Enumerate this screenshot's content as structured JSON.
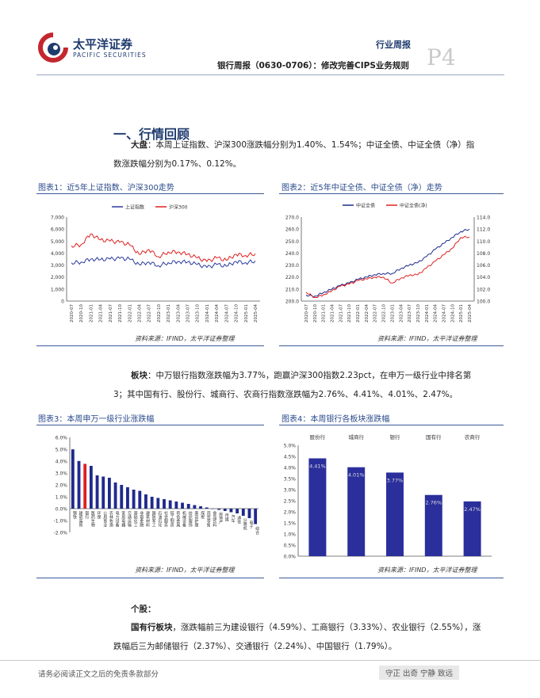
{
  "header": {
    "brand_cn": "太平洋证券",
    "brand_en": "PACIFIC SECURITIES",
    "tag": "行业周报",
    "report_title": "银行周报（0630-0706）：修改完善CIPS业务规则",
    "page": "P4",
    "colors": {
      "brand_blue": "#1f3b6e",
      "brand_red": "#c4262e"
    }
  },
  "section": {
    "title": "一、行情回顾",
    "market": {
      "label": "大盘",
      "text_line1": "：本周上证指数、沪深300涨跌幅分别为1.40%、1.54%；中证全债、中证全债（净）指",
      "text_line2": "数涨跌幅分别为0.17%、0.12%。"
    },
    "board": {
      "label": "板块",
      "text_line1": "：中万银行指数涨跌幅为3.77%，跑赢沪深300指数2.23pct，在申万一级行业中排名第",
      "text_line2": "3；其中国有行、股份行、城商行、农商行指数涨跌幅为2.76%、4.41%、4.01%、2.47%。"
    },
    "stocks": {
      "label": "个股：",
      "state_label": "国有行板块",
      "text_line1": "，涨跌幅前三为建设银行（4.59%）、工商银行（3.33%）、农业银行（2.55%），涨",
      "text_line2": "跌幅后三为邮储银行（2.37%）、交通银行（2.24%）、中国银行（1.79%）。"
    }
  },
  "figures": {
    "fig1_title": "图表1：近5年上证指数、沪深300走势",
    "fig2_title": "图表2：近5年中证全债、中证全债（净）走势",
    "fig3_title": "图表3：本周申万一级行业涨跌幅",
    "fig4_title": "图表4：本周银行各板块涨跌幅",
    "source": "资料来源：IFIND，太平洋证券整理"
  },
  "footer": {
    "disclaimer": "请务必阅读正文之后的免责条款部分",
    "motto": "守正 出奇 宁静 致远"
  },
  "chart_data": [
    {
      "type": "line",
      "title": "近5年上证指数、沪深300走势",
      "legend": [
        "上证指数",
        "沪深300"
      ],
      "ylim": [
        0,
        7000
      ],
      "yticks": [
        "0",
        "1,000",
        "2,000",
        "3,000",
        "4,000",
        "5,000",
        "6,000",
        "7,000"
      ],
      "x": [
        "2020-07",
        "2020-10",
        "2021-01",
        "2021-04",
        "2021-07",
        "2021-10",
        "2022-01",
        "2022-04",
        "2022-07",
        "2022-10",
        "2023-01",
        "2023-04",
        "2023-07",
        "2023-10",
        "2024-01",
        "2024-04",
        "2024-07",
        "2024-10",
        "2025-01",
        "2025-04"
      ],
      "series": [
        {
          "name": "上证指数",
          "color": "#2a3b9c",
          "values": [
            3200,
            3250,
            3500,
            3450,
            3500,
            3550,
            3500,
            3050,
            3250,
            2950,
            3200,
            3300,
            3250,
            3050,
            2800,
            3050,
            2900,
            3300,
            3200,
            3350
          ]
        },
        {
          "name": "沪深300",
          "color": "#e02020",
          "values": [
            4600,
            4700,
            5600,
            5100,
            5000,
            4900,
            4700,
            3900,
            4300,
            3700,
            4100,
            4100,
            3900,
            3600,
            3300,
            3600,
            3400,
            3900,
            3800,
            3950
          ]
        }
      ]
    },
    {
      "type": "line",
      "title": "近5年中证全债、中证全债（净）走势",
      "legend": [
        "中证全债",
        "中证全债(净)"
      ],
      "ylim": [
        200,
        270
      ],
      "ylim_right": [
        100,
        114
      ],
      "yticks": [
        "200.0",
        "210.0",
        "220.0",
        "230.0",
        "240.0",
        "250.0",
        "260.0",
        "270.0"
      ],
      "yticks_right": [
        "100.0",
        "102.0",
        "104.0",
        "106.0",
        "108.0",
        "110.0",
        "112.0",
        "114.0"
      ],
      "x": [
        "2020-07",
        "2020-10",
        "2021-01",
        "2021-04",
        "2021-07",
        "2021-10",
        "2022-01",
        "2022-04",
        "2022-07",
        "2022-10",
        "2023-01",
        "2023-04",
        "2023-07",
        "2023-10",
        "2024-01",
        "2024-04",
        "2024-07",
        "2024-10",
        "2025-01",
        "2025-04"
      ],
      "series": [
        {
          "name": "中证全债",
          "color": "#1f2a8c",
          "axis": "left",
          "values": [
            205,
            204,
            207,
            210,
            213,
            215,
            218,
            220,
            222,
            223,
            223,
            227,
            230,
            232,
            237,
            243,
            248,
            253,
            258,
            260
          ]
        },
        {
          "name": "中证全债(净)",
          "color": "#e02020",
          "axis": "right",
          "values": [
            101.5,
            100.6,
            101.0,
            101.7,
            102.5,
            102.8,
            103.4,
            103.7,
            104.0,
            104.0,
            103.0,
            103.8,
            104.3,
            104.4,
            105.5,
            106.6,
            107.7,
            108.8,
            110.6,
            110.7
          ]
        }
      ]
    },
    {
      "type": "bar",
      "title": "本周申万一级行业涨跌幅",
      "ylim": [
        -2,
        6
      ],
      "yticks": [
        "-2.0%",
        "-1.0%",
        "0.0%",
        "1.0%",
        "2.0%",
        "3.0%",
        "4.0%",
        "5.0%",
        "6.0%"
      ],
      "categories": [
        "钢铁",
        "建筑装饰",
        "银行",
        "医药生物",
        "环保",
        "公用事业",
        "农林牧渔",
        "电力设备",
        "家用电器",
        "交通运输",
        "基础化工",
        "非银金融",
        "建筑材料",
        "国防军工",
        "石油石化",
        "社会服务",
        "轻工制造",
        "有色金属",
        "机械设备",
        "纺织服饰",
        "美容护理",
        "煤炭",
        "商贸零售",
        "食品饮料",
        "房地产",
        "传媒",
        "汽车",
        "通信",
        "计算机",
        "电子",
        "综合"
      ],
      "highlight": "银行",
      "colors": {
        "bar": "#1f2a8c",
        "highlight": "#e02020"
      },
      "values": [
        4.99,
        4.01,
        3.77,
        3.6,
        2.8,
        2.7,
        2.6,
        2.2,
        2.0,
        1.8,
        1.6,
        1.5,
        1.2,
        1.0,
        0.9,
        0.8,
        0.7,
        0.6,
        0.5,
        0.4,
        0.3,
        0.2,
        0.1,
        0.0,
        -0.1,
        -0.2,
        -0.3,
        -0.4,
        -0.6,
        -0.8,
        -1.3
      ]
    },
    {
      "type": "bar",
      "title": "本周银行各板块涨跌幅",
      "ylim": [
        0,
        5
      ],
      "yticks": [
        "0.0%",
        "0.5%",
        "1.0%",
        "1.5%",
        "2.0%",
        "2.5%",
        "3.0%",
        "3.5%",
        "4.0%",
        "4.5%",
        "5.0%"
      ],
      "categories": [
        "股份行",
        "城商行",
        "银行",
        "国有行",
        "农商行"
      ],
      "values": [
        4.41,
        4.01,
        3.77,
        2.76,
        2.47
      ],
      "labels": [
        "4.41%",
        "4.01%",
        "3.77%",
        "2.76%",
        "2.47%"
      ],
      "color": "#2a2f9c"
    }
  ]
}
